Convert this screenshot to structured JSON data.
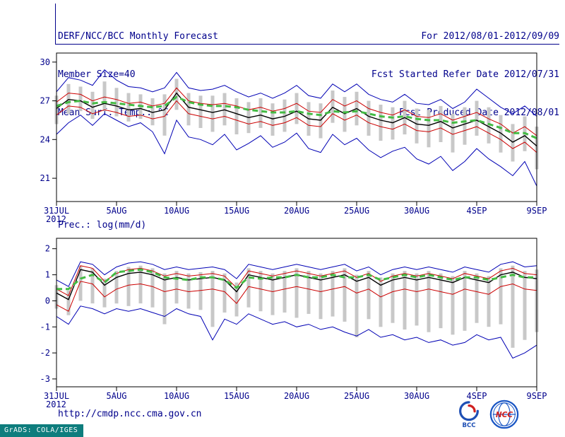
{
  "header": {
    "title": "DERF/NCC/BCC Monthly Forecast",
    "member_size": "Member Size=40",
    "temp_label": "Mean Surf. Temp.: °C",
    "for_range": "For 2012/08/01-2012/09/09",
    "fcst_started": "Fcst Started Refer Date 2012/07/31",
    "fcst_produced": "Fcst Produced Date 2012/08/01"
  },
  "footer": {
    "url": "http://cmdp.ncc.cma.gov.cn",
    "grads": "GrADS: COLA/IGES",
    "logos": {
      "bcc": "BCC",
      "ncc": "NCC"
    }
  },
  "colors": {
    "text": "#00008b",
    "frame": "#000000",
    "ensemble_bar": "#c8c8c8",
    "extreme_line": "#0000b4",
    "quartile_line": "#cc0000",
    "mean_line": "#000000",
    "climatology_line": "#44bb44"
  },
  "chart_data": [
    {
      "type": "line",
      "title": "Mean Surf. Temp.: °C",
      "x_sub_label": "2012",
      "n_points": 41,
      "x_tick_labels": [
        "31JUL",
        "5AUG",
        "10AUG",
        "15AUG",
        "20AUG",
        "25AUG",
        "30AUG",
        "4SEP",
        "9SEP"
      ],
      "x_tick_positions": [
        0,
        5,
        10,
        15,
        20,
        25,
        30,
        35,
        40
      ],
      "ylim": [
        19.2,
        30.7
      ],
      "y_ticks": [
        21,
        24,
        27,
        30
      ],
      "grid": false,
      "legend": "none",
      "bars": {
        "color": "#c8c8c8",
        "high": [
          27.4,
          28.3,
          28.1,
          27.7,
          28.5,
          28.0,
          27.6,
          27.5,
          27.2,
          27.5,
          28.7,
          27.6,
          27.4,
          27.4,
          27.6,
          27.2,
          26.9,
          27.2,
          26.8,
          27.1,
          27.6,
          26.9,
          26.8,
          27.8,
          27.3,
          27.7,
          27.0,
          26.7,
          26.5,
          27.0,
          26.4,
          26.3,
          26.6,
          26.0,
          26.5,
          27.0,
          26.5,
          25.9,
          25.2,
          25.8,
          25.0
        ],
        "low": [
          25.2,
          26.0,
          26.2,
          25.6,
          26.2,
          25.8,
          25.4,
          25.6,
          25.1,
          24.3,
          26.3,
          25.1,
          24.9,
          24.6,
          25.1,
          24.4,
          24.5,
          24.9,
          24.3,
          24.6,
          25.2,
          24.3,
          24.1,
          25.3,
          24.6,
          25.1,
          24.3,
          23.9,
          24.0,
          24.4,
          23.7,
          23.4,
          23.8,
          23.0,
          23.6,
          24.3,
          23.7,
          23.0,
          22.3,
          23.1,
          21.7
        ]
      },
      "series": [
        {
          "name": "min-member",
          "color": "#0000b4",
          "width": 1,
          "dash": null,
          "values": [
            24.4,
            25.3,
            25.9,
            25.1,
            26.0,
            25.5,
            25.0,
            25.3,
            24.6,
            22.9,
            25.5,
            24.2,
            24.0,
            23.6,
            24.4,
            23.2,
            23.7,
            24.3,
            23.4,
            23.8,
            24.5,
            23.3,
            23.0,
            24.4,
            23.6,
            24.1,
            23.2,
            22.6,
            23.1,
            23.4,
            22.5,
            22.1,
            22.7,
            21.6,
            22.3,
            23.3,
            22.5,
            21.9,
            21.2,
            22.3,
            20.4
          ]
        },
        {
          "name": "max-member",
          "color": "#0000b4",
          "width": 1,
          "dash": null,
          "values": [
            27.7,
            28.8,
            28.6,
            28.2,
            29.4,
            28.6,
            28.1,
            28.0,
            27.7,
            28.0,
            29.2,
            28.0,
            27.8,
            27.9,
            28.2,
            27.7,
            27.3,
            27.6,
            27.2,
            27.6,
            28.2,
            27.4,
            27.2,
            28.3,
            27.7,
            28.3,
            27.5,
            27.1,
            26.9,
            27.5,
            26.8,
            26.7,
            27.1,
            26.4,
            26.9,
            27.9,
            27.2,
            26.5,
            26.0,
            26.6,
            25.8
          ]
        },
        {
          "name": "lower-quartile",
          "color": "#cc0000",
          "width": 1,
          "dash": null,
          "values": [
            25.9,
            26.6,
            26.5,
            26.0,
            26.3,
            26.1,
            25.8,
            25.9,
            25.6,
            25.8,
            27.0,
            26.0,
            25.8,
            25.6,
            25.8,
            25.5,
            25.2,
            25.4,
            25.1,
            25.3,
            25.7,
            25.1,
            25.0,
            26.0,
            25.5,
            25.9,
            25.3,
            25.0,
            24.8,
            25.2,
            24.7,
            24.6,
            24.9,
            24.4,
            24.7,
            25.0,
            24.5,
            24.0,
            23.3,
            23.8,
            23.0
          ]
        },
        {
          "name": "upper-quartile",
          "color": "#cc0000",
          "width": 1,
          "dash": null,
          "values": [
            26.9,
            27.6,
            27.5,
            27.0,
            27.3,
            27.1,
            26.8,
            26.9,
            26.6,
            26.8,
            28.0,
            27.0,
            26.8,
            26.7,
            26.8,
            26.6,
            26.3,
            26.5,
            26.2,
            26.4,
            26.8,
            26.2,
            26.1,
            27.1,
            26.6,
            27.0,
            26.4,
            26.1,
            25.9,
            26.3,
            25.8,
            25.7,
            26.0,
            25.5,
            25.8,
            26.1,
            25.6,
            25.2,
            24.5,
            25.0,
            24.3
          ]
        },
        {
          "name": "ensemble-mean",
          "color": "#000000",
          "width": 1.4,
          "dash": null,
          "values": [
            26.4,
            27.1,
            27.0,
            26.5,
            26.8,
            26.6,
            26.3,
            26.4,
            26.1,
            26.3,
            27.6,
            26.5,
            26.3,
            26.1,
            26.3,
            26.0,
            25.7,
            25.9,
            25.6,
            25.8,
            26.2,
            25.6,
            25.5,
            26.5,
            26.0,
            26.4,
            25.8,
            25.5,
            25.3,
            25.7,
            25.2,
            25.1,
            25.4,
            24.9,
            25.2,
            25.5,
            25.0,
            24.5,
            23.8,
            24.3,
            23.5
          ]
        },
        {
          "name": "climatology",
          "color": "#44bb44",
          "width": 3,
          "dash": "8,5",
          "values": [
            26.6,
            26.9,
            27.0,
            26.8,
            26.9,
            26.8,
            26.7,
            26.6,
            26.5,
            26.6,
            27.3,
            26.9,
            26.7,
            26.6,
            26.6,
            26.5,
            26.3,
            26.2,
            26.1,
            26.1,
            26.2,
            26.0,
            25.9,
            26.2,
            26.1,
            26.2,
            26.0,
            25.8,
            25.7,
            25.8,
            25.6,
            25.5,
            25.5,
            25.3,
            25.4,
            25.5,
            25.2,
            24.9,
            24.5,
            24.5,
            24.1
          ]
        }
      ]
    },
    {
      "type": "line",
      "title": "Prec.: log(mm/d)",
      "x_sub_label": "2012",
      "n_points": 41,
      "x_tick_labels": [
        "31JUL",
        "5AUG",
        "10AUG",
        "15AUG",
        "20AUG",
        "25AUG",
        "30AUG",
        "4SEP",
        "9SEP"
      ],
      "x_tick_positions": [
        0,
        5,
        10,
        15,
        20,
        25,
        30,
        35,
        40
      ],
      "ylim": [
        -3.3,
        2.4
      ],
      "y_ticks": [
        -3,
        -2,
        -1,
        0,
        1,
        2
      ],
      "grid": false,
      "legend": "none",
      "bars": {
        "color": "#c8c8c8",
        "high": [
          0.6,
          0.4,
          1.35,
          1.25,
          0.85,
          1.15,
          1.3,
          1.35,
          1.25,
          1.05,
          1.15,
          1.05,
          1.1,
          1.15,
          1.05,
          0.7,
          1.25,
          1.15,
          1.05,
          1.15,
          1.25,
          1.15,
          1.05,
          1.15,
          1.25,
          1.0,
          1.15,
          0.9,
          1.05,
          1.15,
          1.05,
          1.15,
          1.05,
          0.95,
          1.15,
          1.05,
          0.95,
          1.25,
          1.35,
          1.15,
          1.2
        ],
        "low": [
          -0.3,
          -0.55,
          0.0,
          -0.1,
          -0.25,
          -0.1,
          -0.2,
          -0.1,
          -0.25,
          -0.9,
          -0.1,
          -0.3,
          -0.35,
          -1.0,
          -0.45,
          -0.6,
          -0.25,
          -0.4,
          -0.55,
          -0.45,
          -0.65,
          -0.5,
          -0.7,
          -0.6,
          -0.8,
          -1.4,
          -0.7,
          -1.0,
          -0.85,
          -1.1,
          -0.95,
          -1.2,
          -1.05,
          -1.3,
          -1.15,
          -0.85,
          -1.0,
          -0.9,
          -1.8,
          -1.5,
          -1.2
        ]
      },
      "series": [
        {
          "name": "min-member",
          "color": "#0000b4",
          "width": 1,
          "dash": null,
          "values": [
            -0.6,
            -0.9,
            -0.2,
            -0.3,
            -0.5,
            -0.3,
            -0.4,
            -0.3,
            -0.45,
            -0.6,
            -0.3,
            -0.5,
            -0.6,
            -1.5,
            -0.7,
            -0.9,
            -0.5,
            -0.7,
            -0.9,
            -0.8,
            -1.0,
            -0.9,
            -1.1,
            -1.0,
            -1.2,
            -1.35,
            -1.1,
            -1.4,
            -1.3,
            -1.5,
            -1.4,
            -1.6,
            -1.5,
            -1.7,
            -1.6,
            -1.3,
            -1.5,
            -1.4,
            -2.2,
            -2.0,
            -1.7
          ]
        },
        {
          "name": "max-member",
          "color": "#0000b4",
          "width": 1,
          "dash": null,
          "values": [
            0.8,
            0.55,
            1.5,
            1.4,
            1.0,
            1.3,
            1.45,
            1.5,
            1.4,
            1.2,
            1.3,
            1.2,
            1.25,
            1.3,
            1.2,
            0.85,
            1.4,
            1.3,
            1.2,
            1.3,
            1.4,
            1.3,
            1.2,
            1.3,
            1.4,
            1.15,
            1.3,
            1.0,
            1.2,
            1.3,
            1.2,
            1.3,
            1.2,
            1.1,
            1.3,
            1.2,
            1.1,
            1.4,
            1.5,
            1.3,
            1.35
          ]
        },
        {
          "name": "lower-quartile",
          "color": "#cc0000",
          "width": 1,
          "dash": null,
          "values": [
            -0.15,
            -0.4,
            0.75,
            0.65,
            0.15,
            0.45,
            0.6,
            0.65,
            0.55,
            0.35,
            0.45,
            0.35,
            0.4,
            0.45,
            0.35,
            -0.1,
            0.55,
            0.45,
            0.35,
            0.45,
            0.55,
            0.45,
            0.35,
            0.45,
            0.55,
            0.3,
            0.45,
            0.15,
            0.35,
            0.45,
            0.35,
            0.45,
            0.35,
            0.25,
            0.45,
            0.35,
            0.25,
            0.55,
            0.65,
            0.45,
            0.4
          ]
        },
        {
          "name": "upper-quartile",
          "color": "#cc0000",
          "width": 1,
          "dash": null,
          "values": [
            0.45,
            0.2,
            1.35,
            1.25,
            0.75,
            1.05,
            1.2,
            1.25,
            1.15,
            0.95,
            1.05,
            0.95,
            1.0,
            1.05,
            0.95,
            0.5,
            1.15,
            1.05,
            0.95,
            1.05,
            1.15,
            1.05,
            0.95,
            1.05,
            1.15,
            0.9,
            1.05,
            0.75,
            0.95,
            1.05,
            0.95,
            1.05,
            0.95,
            0.85,
            1.05,
            0.95,
            0.85,
            1.15,
            1.25,
            1.05,
            1.0
          ]
        },
        {
          "name": "ensemble-mean",
          "color": "#000000",
          "width": 1.4,
          "dash": null,
          "values": [
            0.3,
            0.05,
            1.2,
            1.1,
            0.6,
            0.9,
            1.05,
            1.1,
            1.0,
            0.8,
            0.9,
            0.8,
            0.85,
            0.9,
            0.8,
            0.35,
            1.0,
            0.9,
            0.8,
            0.9,
            1.0,
            0.9,
            0.8,
            0.9,
            1.0,
            0.75,
            0.9,
            0.6,
            0.8,
            0.9,
            0.8,
            0.9,
            0.8,
            0.7,
            0.9,
            0.8,
            0.7,
            1.0,
            1.1,
            0.9,
            0.85
          ]
        },
        {
          "name": "climatology",
          "color": "#44bb44",
          "width": 3,
          "dash": "8,5",
          "values": [
            0.45,
            0.45,
            0.85,
            1.0,
            0.7,
            1.1,
            1.15,
            1.2,
            1.1,
            0.9,
            0.85,
            0.8,
            0.9,
            0.9,
            0.8,
            0.5,
            0.9,
            0.85,
            0.9,
            0.9,
            1.0,
            0.9,
            0.9,
            1.0,
            0.9,
            0.9,
            1.0,
            0.8,
            0.9,
            1.0,
            0.9,
            1.0,
            0.9,
            0.8,
            0.9,
            0.9,
            0.8,
            0.9,
            1.0,
            0.9,
            0.9
          ]
        }
      ]
    }
  ]
}
